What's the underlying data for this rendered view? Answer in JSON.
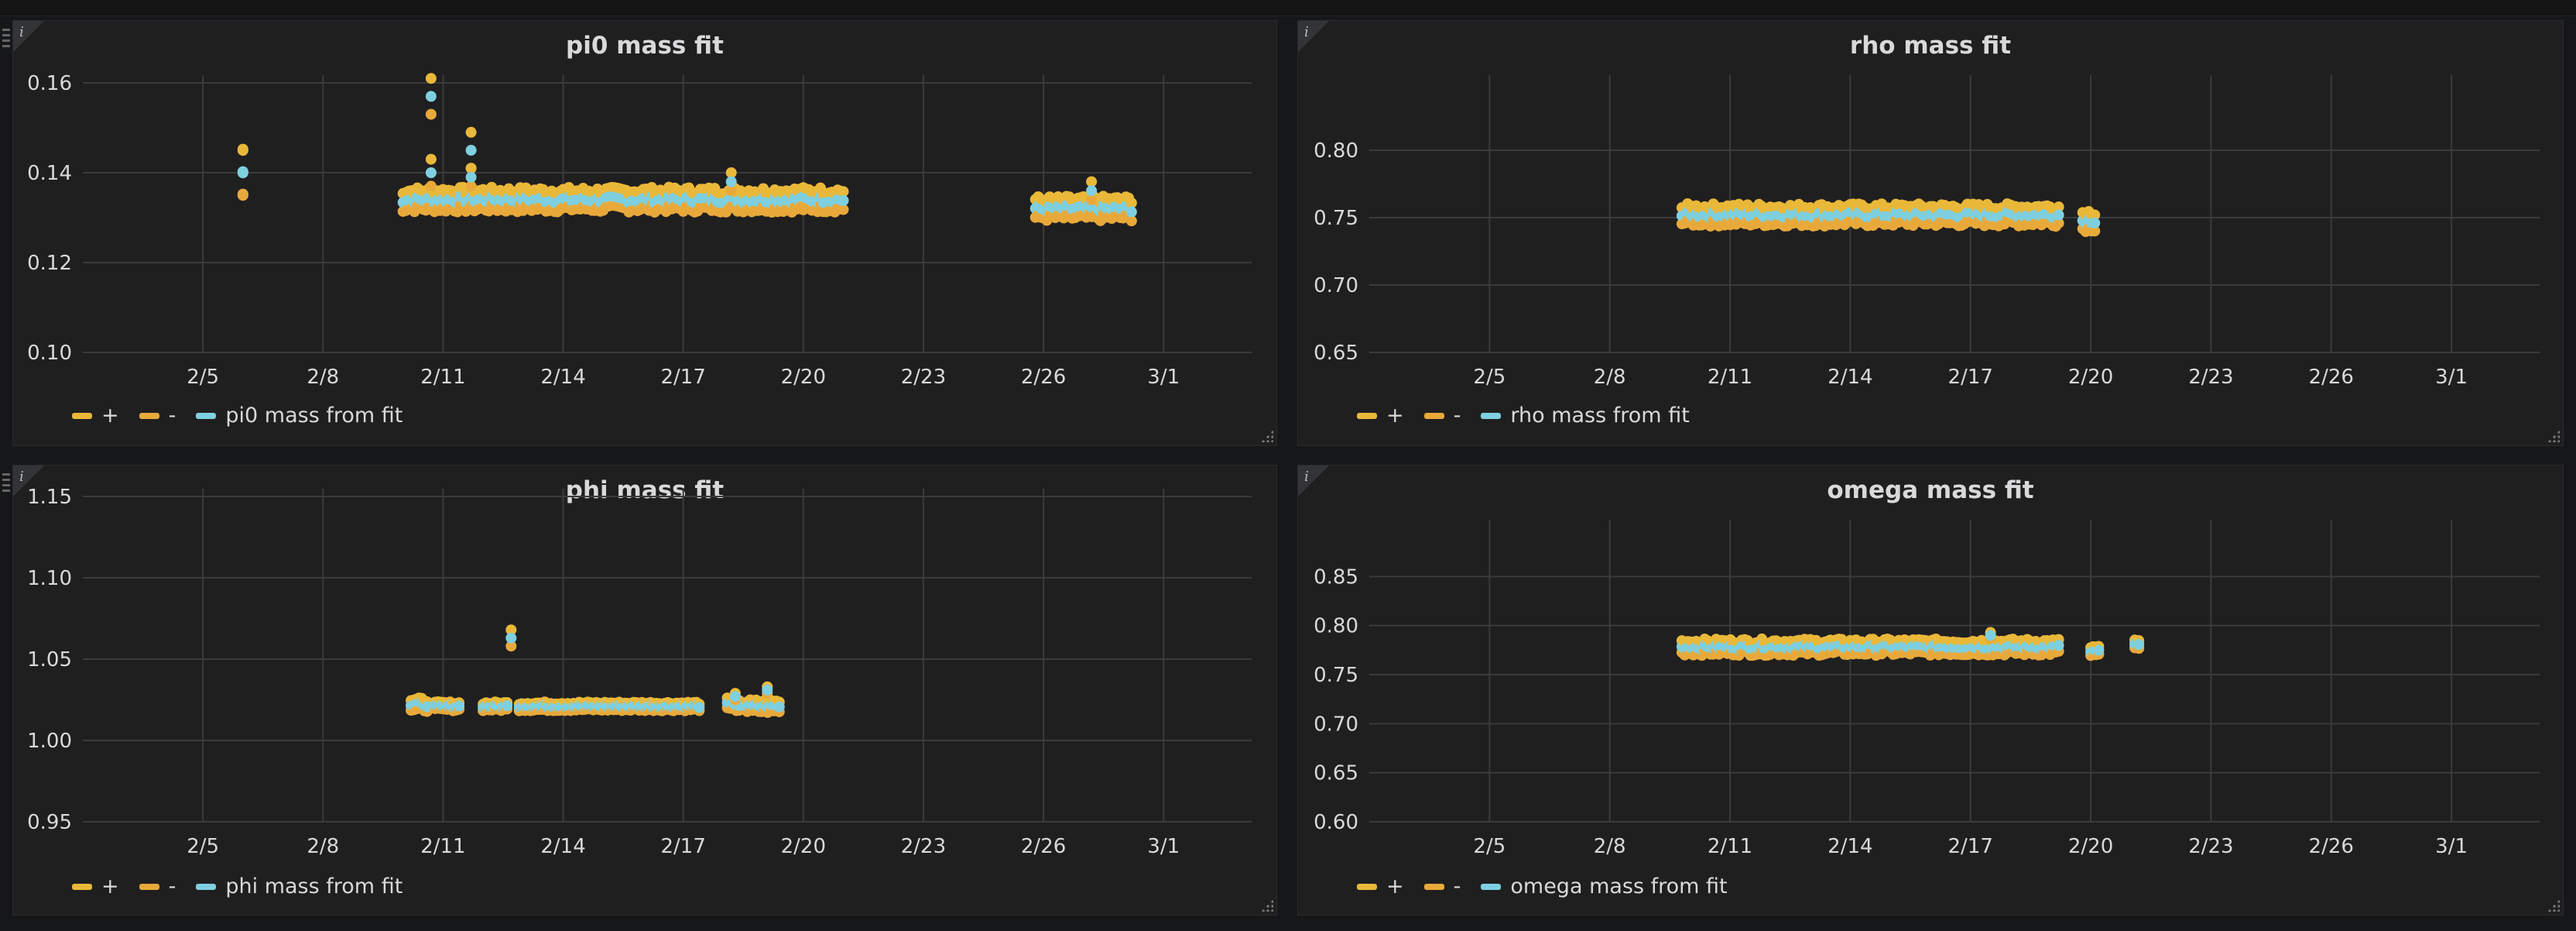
{
  "colors": {
    "upper": "#eab839",
    "lower": "#e8a93a",
    "fit": "#7ed0e0"
  },
  "icons": {
    "info": "i"
  },
  "chart_data": [
    {
      "type": "scatter",
      "title": "pi0 mass fit",
      "x_ticks": [
        "2/5",
        "2/8",
        "2/11",
        "2/14",
        "2/17",
        "2/20",
        "2/23",
        "2/26",
        "3/1"
      ],
      "y_ticks": [
        "0.10",
        "0.12",
        "0.14",
        "0.16"
      ],
      "ylim": [
        0.1,
        0.16
      ],
      "x_range_days": [
        3.3,
        4.9
      ],
      "legend": [
        "+",
        "-",
        "pi0 mass from fit"
      ],
      "segments": [
        {
          "x": [
            6.0,
            6.0
          ],
          "y": 0.14,
          "spread": 0.005
        },
        {
          "x": [
            10.0,
            20.0
          ],
          "y": 0.134,
          "spread": 0.002
        },
        {
          "x": [
            20.0,
            21.0
          ],
          "y": 0.134,
          "spread": 0.002
        },
        {
          "x": [
            25.8,
            28.2
          ],
          "y": 0.132,
          "spread": 0.002
        }
      ],
      "spikes": [
        {
          "x": 10.7,
          "y": 0.157,
          "spread": 0.004
        },
        {
          "x": 10.7,
          "y": 0.14,
          "spread": 0.003
        },
        {
          "x": 11.7,
          "y": 0.145,
          "spread": 0.004
        },
        {
          "x": 11.7,
          "y": 0.139,
          "spread": 0.002
        },
        {
          "x": 18.2,
          "y": 0.138,
          "spread": 0.002
        },
        {
          "x": 27.2,
          "y": 0.136,
          "spread": 0.002
        }
      ]
    },
    {
      "type": "scatter",
      "title": "rho mass fit",
      "x_ticks": [
        "2/5",
        "2/8",
        "2/11",
        "2/14",
        "2/17",
        "2/20",
        "2/23",
        "2/26",
        "3/1"
      ],
      "y_ticks": [
        "0.65",
        "0.70",
        "0.75",
        "0.80"
      ],
      "ylim": [
        0.65,
        0.85
      ],
      "legend": [
        "+",
        "-",
        "rho mass from fit"
      ],
      "segments": [
        {
          "x": [
            9.8,
            19.2
          ],
          "y": 0.752,
          "spread": 0.006
        },
        {
          "x": [
            19.8,
            20.1
          ],
          "y": 0.748,
          "spread": 0.006
        }
      ],
      "spikes": []
    },
    {
      "type": "scatter",
      "title": "phi mass fit",
      "x_ticks": [
        "2/5",
        "2/8",
        "2/11",
        "2/14",
        "2/17",
        "2/20",
        "2/23",
        "2/26",
        "3/1"
      ],
      "y_ticks": [
        "0.95",
        "1.00",
        "1.05",
        "1.10",
        "1.15"
      ],
      "ylim": [
        0.95,
        1.15
      ],
      "legend": [
        "+",
        "-",
        "phi mass from fit"
      ],
      "segments": [
        {
          "x": [
            10.2,
            10.6
          ],
          "y": 1.022,
          "spread": 0.003
        },
        {
          "x": [
            10.8,
            11.4
          ],
          "y": 1.021,
          "spread": 0.002
        },
        {
          "x": [
            12.0,
            12.6
          ],
          "y": 1.021,
          "spread": 0.002
        },
        {
          "x": [
            12.9,
            17.4
          ],
          "y": 1.021,
          "spread": 0.002
        },
        {
          "x": [
            18.1,
            18.4
          ],
          "y": 1.022,
          "spread": 0.003
        },
        {
          "x": [
            18.6,
            19.4
          ],
          "y": 1.021,
          "spread": 0.003
        }
      ],
      "spikes": [
        {
          "x": 12.7,
          "y": 1.063,
          "spread": 0.005
        },
        {
          "x": 18.3,
          "y": 1.027,
          "spread": 0.002
        },
        {
          "x": 19.1,
          "y": 1.031,
          "spread": 0.002
        }
      ]
    },
    {
      "type": "scatter",
      "title": "omega mass fit",
      "x_ticks": [
        "2/5",
        "2/8",
        "2/11",
        "2/14",
        "2/17",
        "2/20",
        "2/23",
        "2/26",
        "3/1"
      ],
      "y_ticks": [
        "0.60",
        "0.65",
        "0.70",
        "0.75",
        "0.80",
        "0.85"
      ],
      "ylim": [
        0.6,
        0.9
      ],
      "legend": [
        "+",
        "-",
        "omega mass from fit"
      ],
      "segments": [
        {
          "x": [
            9.8,
            19.2
          ],
          "y": 0.778,
          "spread": 0.006
        },
        {
          "x": [
            20.0,
            20.2
          ],
          "y": 0.774,
          "spread": 0.004
        },
        {
          "x": [
            21.1,
            21.2
          ],
          "y": 0.78,
          "spread": 0.004
        }
      ],
      "spikes": [
        {
          "x": 17.5,
          "y": 0.79,
          "spread": 0.003
        }
      ]
    }
  ]
}
